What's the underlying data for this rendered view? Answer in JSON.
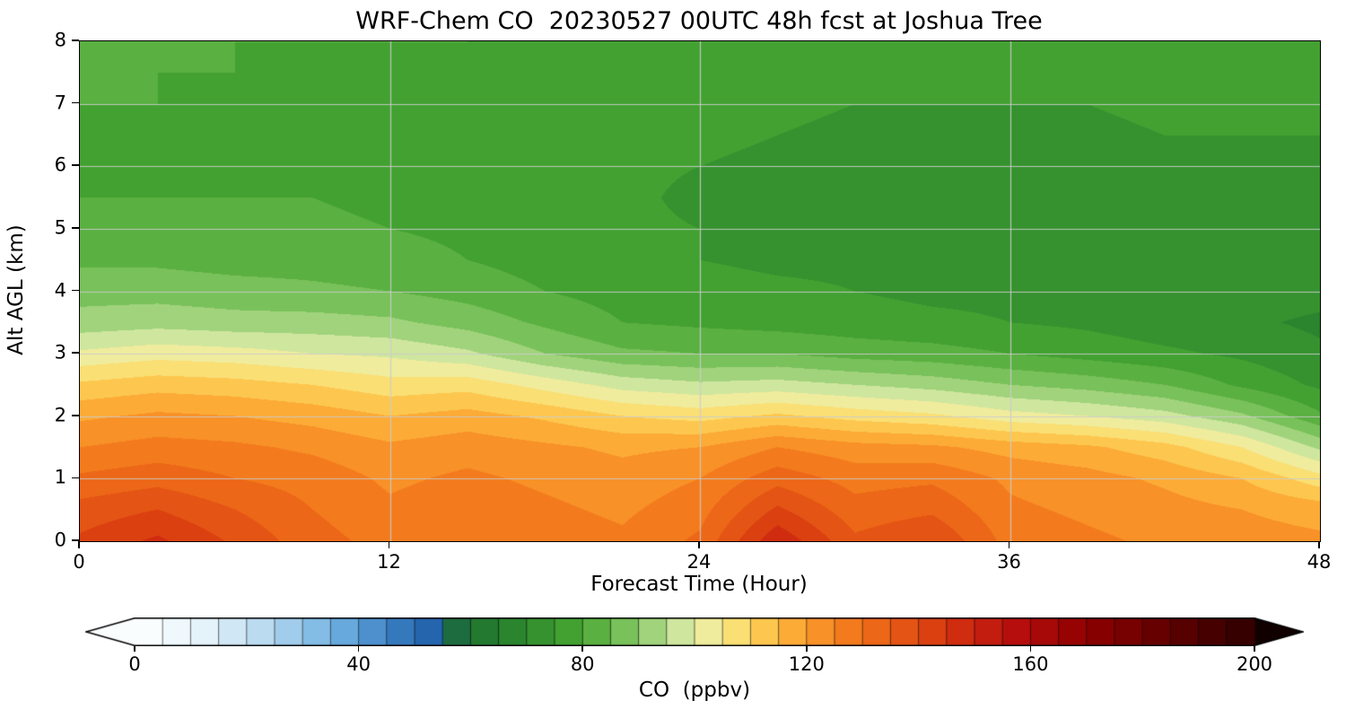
{
  "chart_data": {
    "type": "heatmap",
    "title": "WRF-Chem CO  20230527 00UTC 48h fcst at Joshua Tree",
    "xlabel": "Forecast Time (Hour)",
    "ylabel": "Alt AGL (km)",
    "x_range": [
      0,
      48
    ],
    "y_range": [
      0,
      8
    ],
    "x_ticks": [
      0,
      12,
      24,
      36,
      48
    ],
    "y_ticks": [
      0,
      1,
      2,
      3,
      4,
      5,
      6,
      7,
      8
    ],
    "x_gridlines": [
      12,
      24,
      36
    ],
    "y_gridlines": [
      1,
      2,
      3,
      4,
      5,
      6,
      7
    ],
    "grid": true,
    "values_units": "ppbv",
    "x": [
      0,
      3,
      6,
      9,
      12,
      15,
      18,
      21,
      24,
      27,
      30,
      33,
      36,
      39,
      42,
      45,
      48
    ],
    "y": [
      0,
      0.5,
      1,
      1.5,
      2,
      2.5,
      3,
      3.5,
      4,
      4.5,
      5,
      5.5,
      6,
      6.5,
      7,
      7.5,
      8
    ],
    "values": [
      [
        141,
        146,
        139,
        132,
        128,
        130,
        128,
        126,
        131,
        149,
        136,
        140,
        128,
        126,
        124,
        122,
        121
      ],
      [
        137,
        140,
        135,
        130,
        126,
        128,
        126,
        124,
        128,
        141,
        132,
        134,
        126,
        124,
        122,
        120,
        118
      ],
      [
        131,
        133,
        130,
        128,
        124,
        126,
        124,
        122,
        125,
        133,
        128,
        129,
        124,
        122,
        119,
        115,
        107
      ],
      [
        125,
        127,
        126,
        124,
        121,
        123,
        121,
        119,
        120,
        125,
        122,
        121,
        118,
        116,
        112,
        105,
        94
      ],
      [
        119,
        121,
        120,
        118,
        115,
        117,
        114,
        110,
        108,
        111,
        108,
        106,
        102,
        100,
        97,
        91,
        81
      ],
      [
        111,
        113,
        112,
        110,
        107,
        108,
        103,
        98,
        96,
        97,
        95,
        93,
        90,
        88,
        85,
        79,
        74
      ],
      [
        101,
        103,
        102,
        100,
        99,
        96,
        90,
        86,
        85,
        85,
        83,
        82,
        80,
        78,
        76,
        74,
        71
      ],
      [
        92,
        93,
        92,
        92,
        91,
        88,
        84,
        80,
        79,
        78,
        77,
        76,
        75,
        74,
        72,
        71,
        69
      ],
      [
        88,
        88,
        87,
        86,
        85,
        83,
        80,
        78,
        77,
        76,
        75,
        74,
        74,
        74,
        74,
        73,
        72
      ],
      [
        84,
        84,
        83,
        83,
        82,
        80,
        78,
        76,
        75,
        74,
        74,
        73,
        73,
        73,
        73,
        72,
        72
      ],
      [
        81,
        82,
        81,
        81,
        80,
        79,
        77,
        76,
        75,
        74,
        73,
        73,
        72,
        72,
        73,
        72,
        72
      ],
      [
        80,
        80,
        80,
        80,
        79,
        78,
        77,
        76,
        74,
        73,
        73,
        72,
        72,
        72,
        73,
        73,
        73
      ],
      [
        79,
        80,
        79,
        79,
        79,
        78,
        77,
        76,
        75,
        74,
        73,
        73,
        73,
        73,
        74,
        74,
        74
      ],
      [
        79,
        79,
        79,
        78,
        79,
        78,
        78,
        77,
        76,
        75,
        74,
        74,
        74,
        74,
        75,
        75,
        75
      ],
      [
        80,
        80,
        79,
        79,
        79,
        79,
        78,
        78,
        77,
        76,
        75,
        75,
        75,
        75,
        76,
        76,
        76
      ],
      [
        80,
        80,
        80,
        79,
        80,
        79,
        79,
        78,
        78,
        77,
        76,
        76,
        76,
        76,
        77,
        77,
        77
      ],
      [
        81,
        81,
        80,
        80,
        80,
        80,
        79,
        79,
        78,
        78,
        77,
        77,
        77,
        77,
        78,
        78,
        78
      ]
    ],
    "contour_step": 5,
    "colormap_anchors": [
      [
        0,
        "#ffffff"
      ],
      [
        12,
        "#e6f3fa"
      ],
      [
        24,
        "#b5d8f0"
      ],
      [
        36,
        "#6fb0e0"
      ],
      [
        46,
        "#3a7fc2"
      ],
      [
        54,
        "#1f5fa8"
      ],
      [
        58,
        "#1d6e30"
      ],
      [
        70,
        "#2e8b2e"
      ],
      [
        80,
        "#4aa833"
      ],
      [
        88,
        "#7cc35e"
      ],
      [
        95,
        "#b5dc8c"
      ],
      [
        100,
        "#e8f0b0"
      ],
      [
        105,
        "#f7e88a"
      ],
      [
        110,
        "#fdd55f"
      ],
      [
        115,
        "#fdb83e"
      ],
      [
        122,
        "#f99329"
      ],
      [
        130,
        "#f07018"
      ],
      [
        140,
        "#e04a12"
      ],
      [
        148,
        "#cf2a10"
      ],
      [
        158,
        "#b50d0d"
      ],
      [
        170,
        "#8f0000"
      ],
      [
        185,
        "#5e0000"
      ],
      [
        200,
        "#2e0000"
      ],
      [
        212,
        "#000000"
      ]
    ],
    "colorbar": {
      "label": "CO  (ppbv)",
      "ticks": [
        0,
        40,
        80,
        120,
        160,
        200
      ],
      "vmin": 0,
      "vmax": 200,
      "extend": "both"
    }
  },
  "colors": {
    "background": "#ffffff",
    "gridline": "#cccccc",
    "spine": "#000000",
    "tick_label": "#000000"
  }
}
